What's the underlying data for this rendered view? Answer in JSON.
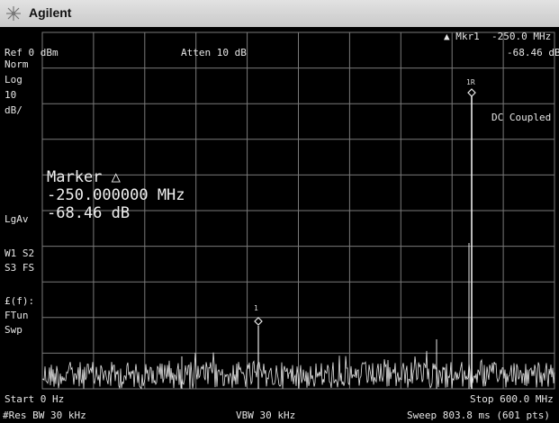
{
  "app": {
    "brand": "Agilent"
  },
  "header": {
    "ref": "Ref 0 dBm",
    "atten": "Atten 10 dB",
    "marker_label": "▲ Mkr1",
    "marker_freq": "-250.0 MHz",
    "marker_amp": "-68.46 dB"
  },
  "side_labels": {
    "norm": "Norm",
    "log": "Log",
    "scale_value": "10",
    "scale_unit": "dB/",
    "avg": "LgAv",
    "w1s2": "W1  S2",
    "s3fs": "S3  FS",
    "ff": "£(f):",
    "ftun": "FTun",
    "swp": "Swp"
  },
  "dc_coupled": "DC Coupled",
  "marker_readout": {
    "title": "Marker △",
    "freq": "-250.000000 MHz",
    "amp": "-68.46 dB"
  },
  "markers": [
    {
      "label": "1",
      "freq_offset_mhz": -250.0
    },
    {
      "label": "1R",
      "freq_offset_mhz": 0.0
    }
  ],
  "footer": {
    "start": "Start 0 Hz",
    "stop": "Stop 600.0 MHz",
    "rbw": "#Res BW 30 kHz",
    "vbw": "VBW 30 kHz",
    "sweep": "Sweep 803.8 ms (601 pts)"
  },
  "colors": {
    "trace": "#e8e8e8",
    "grid": "#7a7a7a",
    "background": "#000000"
  }
}
